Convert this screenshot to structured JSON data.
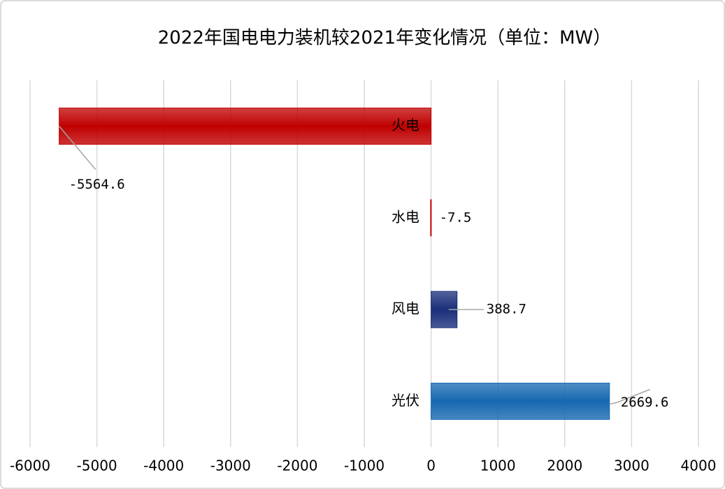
{
  "chart_data": {
    "type": "bar",
    "orientation": "horizontal",
    "title": "2022年国电电力装机较2021年变化情况（单位：MW）",
    "categories": [
      "火电",
      "水电",
      "风电",
      "光伏"
    ],
    "values": [
      -5564.6,
      -7.5,
      388.7,
      2669.6
    ],
    "colors": [
      "#c00000",
      "#c00000",
      "#1a2f7a",
      "#1668b0"
    ],
    "xlim": [
      -6000,
      4000
    ],
    "xticks": [
      -6000,
      -5000,
      -4000,
      -3000,
      -2000,
      -1000,
      0,
      1000,
      2000,
      3000,
      4000
    ],
    "grid": true
  }
}
